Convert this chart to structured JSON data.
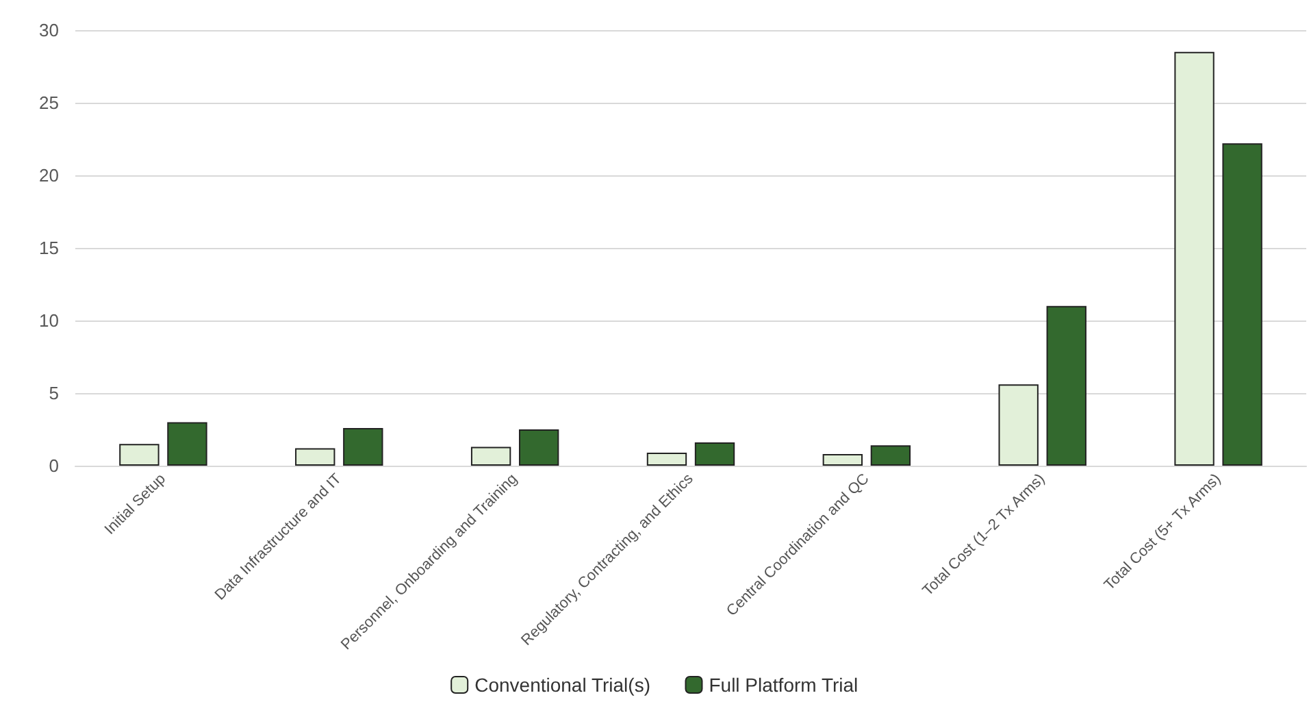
{
  "chart_data": {
    "type": "bar",
    "categories": [
      "Initial Setup",
      "Data Infrastructure and IT",
      "Personnel, Onboarding and Training",
      "Regulatory, Contracting, and Ethics",
      "Central Coordination and QC",
      "Total Cost (1–2 Tx Arms)",
      "Total Cost (5+ Tx Arms)"
    ],
    "series": [
      {
        "name": "Conventional Trial(s)",
        "color": "#e2f0d9",
        "values": [
          1.5,
          1.2,
          1.3,
          0.9,
          0.8,
          5.6,
          28.5
        ]
      },
      {
        "name": "Full Platform Trial",
        "color": "#33692e",
        "values": [
          3.0,
          2.6,
          2.5,
          1.6,
          1.4,
          11.0,
          22.2
        ]
      }
    ],
    "ylim": [
      0,
      30
    ],
    "yticks": [
      0,
      5,
      10,
      15,
      20,
      25,
      30
    ],
    "grid": "y",
    "legend": "bottom"
  }
}
